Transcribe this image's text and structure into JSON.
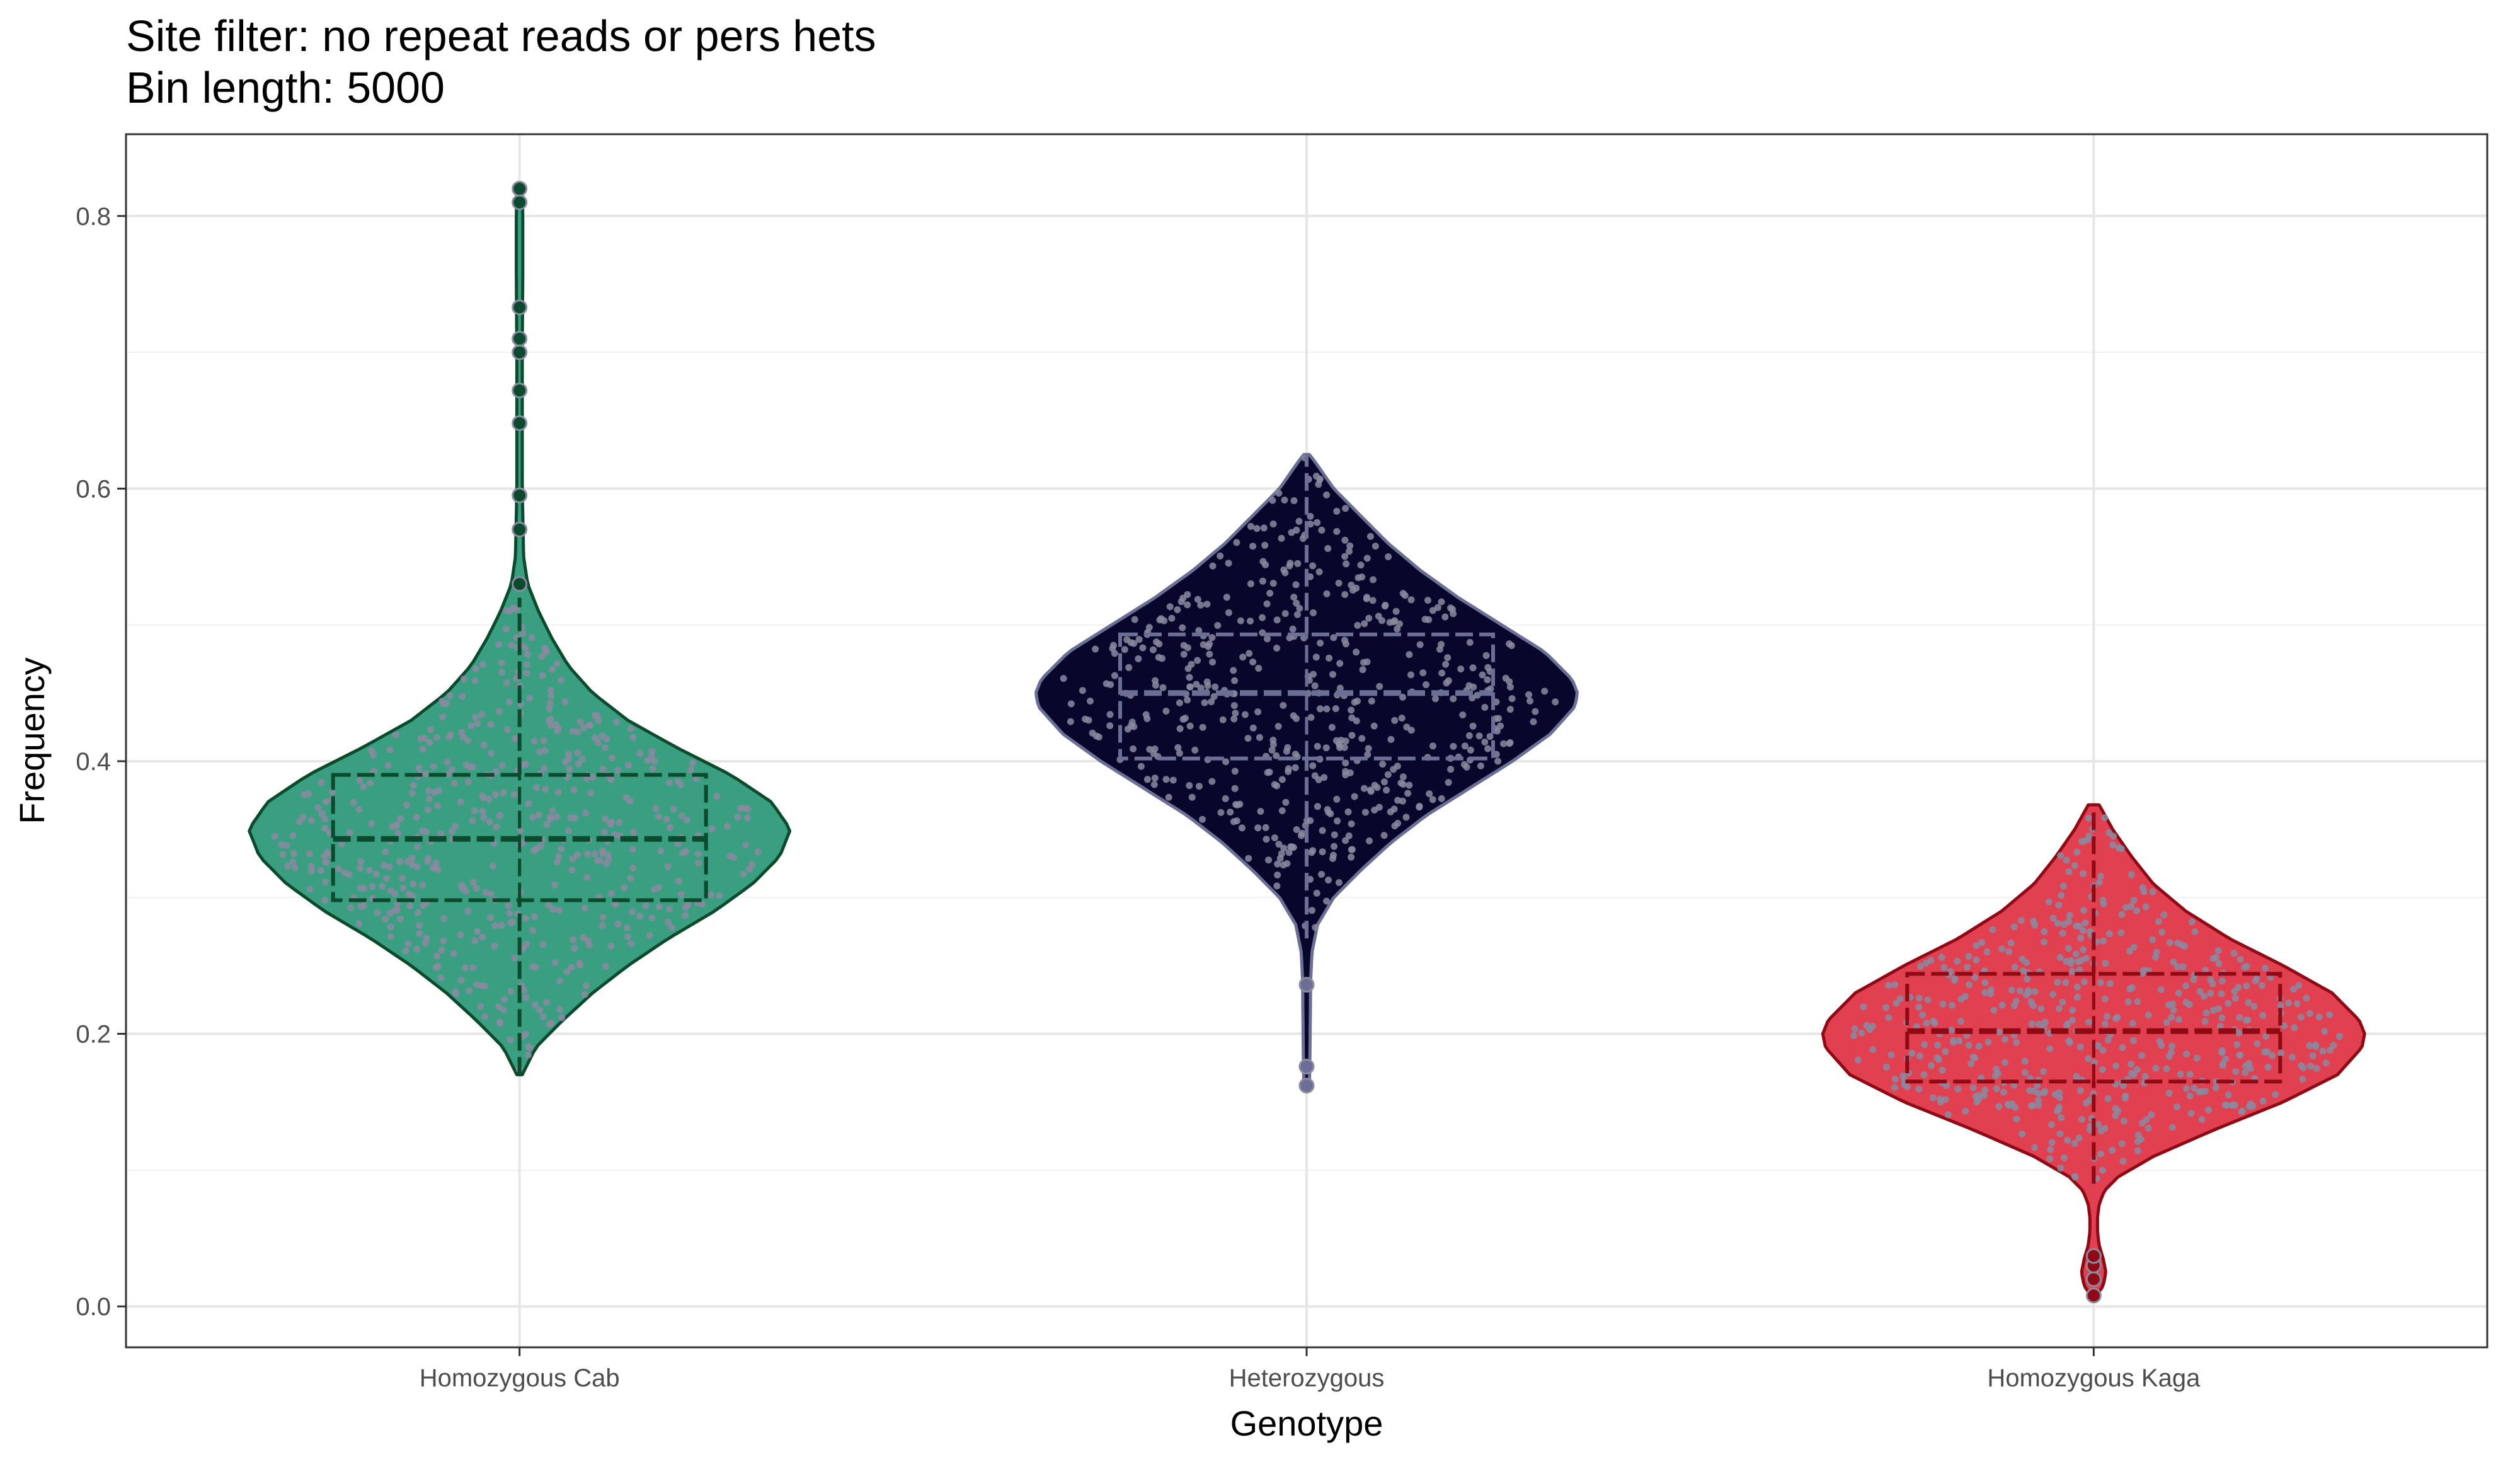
{
  "title_lines": [
    "Site filter: no repeat reads or pers hets",
    "Bin length: 5000"
  ],
  "chart_data": {
    "type": "violin",
    "title": "Site filter: no repeat reads or pers hets\nBin length: 5000",
    "xlabel": "Genotype",
    "ylabel": "Frequency",
    "categories": [
      "Homozygous Cab",
      "Heterozygous",
      "Homozygous Kaga"
    ],
    "ylim": [
      -0.03,
      0.86
    ],
    "y_ticks": [
      0.0,
      0.2,
      0.4,
      0.6,
      0.8
    ],
    "y_tick_labels": [
      "0.0",
      "0.2",
      "0.4",
      "0.6",
      "0.8"
    ],
    "grid": true,
    "legend": "none",
    "series": [
      {
        "name": "Homozygous Cab",
        "fill": "#3a9e80",
        "line": "#0c4a2e",
        "box": {
          "q1": 0.298,
          "median": 0.343,
          "q3": 0.39,
          "whisker_low": 0.17,
          "whisker_high": 0.52
        },
        "range": [
          0.17,
          0.82
        ],
        "outliers": [
          0.53,
          0.57,
          0.595,
          0.648,
          0.672,
          0.7,
          0.71,
          0.733,
          0.81,
          0.82
        ],
        "density": [
          [
            0.17,
            0.01
          ],
          [
            0.19,
            0.06
          ],
          [
            0.21,
            0.16
          ],
          [
            0.23,
            0.27
          ],
          [
            0.25,
            0.4
          ],
          [
            0.27,
            0.55
          ],
          [
            0.29,
            0.72
          ],
          [
            0.31,
            0.86
          ],
          [
            0.33,
            0.96
          ],
          [
            0.35,
            1.0
          ],
          [
            0.37,
            0.93
          ],
          [
            0.39,
            0.78
          ],
          [
            0.41,
            0.58
          ],
          [
            0.43,
            0.4
          ],
          [
            0.45,
            0.27
          ],
          [
            0.47,
            0.18
          ],
          [
            0.49,
            0.12
          ],
          [
            0.51,
            0.07
          ],
          [
            0.53,
            0.03
          ],
          [
            0.55,
            0.015
          ],
          [
            0.6,
            0.01
          ],
          [
            0.7,
            0.01
          ],
          [
            0.76,
            0.012
          ],
          [
            0.8,
            0.012
          ],
          [
            0.82,
            0.01
          ]
        ]
      },
      {
        "name": "Heterozygous",
        "fill": "#08062b",
        "line": "#6b6f95",
        "box": {
          "q1": 0.402,
          "median": 0.45,
          "q3": 0.493,
          "whisker_low": 0.27,
          "whisker_high": 0.625
        },
        "range": [
          0.16,
          0.625
        ],
        "outliers": [
          0.162,
          0.176,
          0.236
        ],
        "density": [
          [
            0.16,
            0.01
          ],
          [
            0.18,
            0.012
          ],
          [
            0.2,
            0.013
          ],
          [
            0.22,
            0.014
          ],
          [
            0.24,
            0.015
          ],
          [
            0.26,
            0.02
          ],
          [
            0.28,
            0.04
          ],
          [
            0.3,
            0.1
          ],
          [
            0.32,
            0.2
          ],
          [
            0.34,
            0.31
          ],
          [
            0.36,
            0.44
          ],
          [
            0.38,
            0.6
          ],
          [
            0.4,
            0.76
          ],
          [
            0.42,
            0.9
          ],
          [
            0.44,
            0.99
          ],
          [
            0.45,
            1.0
          ],
          [
            0.46,
            0.98
          ],
          [
            0.48,
            0.88
          ],
          [
            0.5,
            0.72
          ],
          [
            0.52,
            0.56
          ],
          [
            0.54,
            0.42
          ],
          [
            0.56,
            0.3
          ],
          [
            0.58,
            0.2
          ],
          [
            0.6,
            0.1
          ],
          [
            0.62,
            0.03
          ],
          [
            0.625,
            0.01
          ]
        ]
      },
      {
        "name": "Homozygous Kaga",
        "fill": "#e0404f",
        "line": "#8f0a14",
        "box": {
          "q1": 0.165,
          "median": 0.202,
          "q3": 0.244,
          "whisker_low": 0.09,
          "whisker_high": 0.368
        },
        "range": [
          0.008,
          0.368
        ],
        "outliers": [
          0.008,
          0.02,
          0.03,
          0.037
        ],
        "density": [
          [
            0.008,
            0.01
          ],
          [
            0.015,
            0.035
          ],
          [
            0.025,
            0.045
          ],
          [
            0.035,
            0.035
          ],
          [
            0.045,
            0.02
          ],
          [
            0.055,
            0.014
          ],
          [
            0.065,
            0.014
          ],
          [
            0.075,
            0.02
          ],
          [
            0.085,
            0.04
          ],
          [
            0.095,
            0.09
          ],
          [
            0.11,
            0.22
          ],
          [
            0.13,
            0.45
          ],
          [
            0.15,
            0.7
          ],
          [
            0.17,
            0.9
          ],
          [
            0.19,
            0.99
          ],
          [
            0.2,
            1.0
          ],
          [
            0.21,
            0.98
          ],
          [
            0.23,
            0.88
          ],
          [
            0.25,
            0.7
          ],
          [
            0.27,
            0.5
          ],
          [
            0.29,
            0.34
          ],
          [
            0.31,
            0.22
          ],
          [
            0.33,
            0.14
          ],
          [
            0.35,
            0.07
          ],
          [
            0.368,
            0.02
          ]
        ]
      }
    ]
  }
}
